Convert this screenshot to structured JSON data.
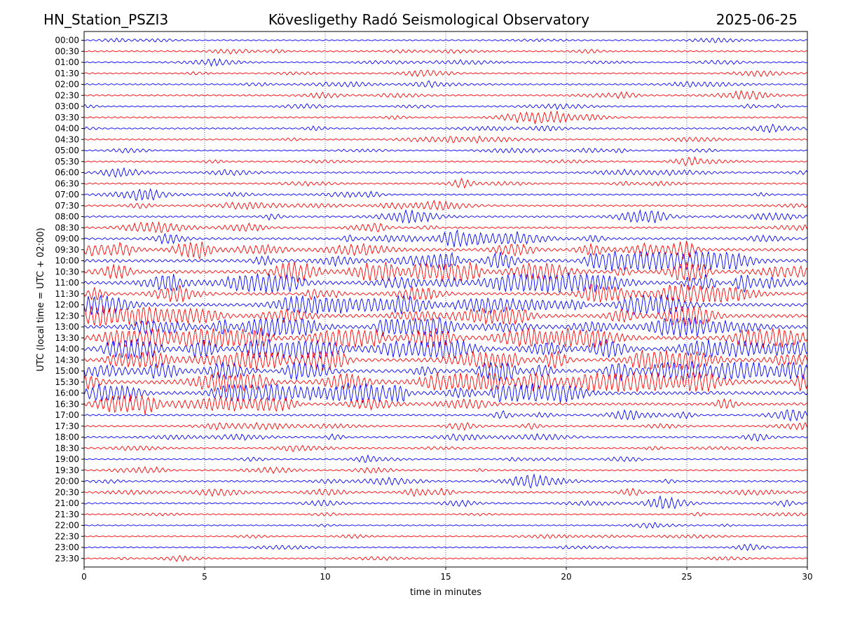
{
  "header": {
    "station": "HN_Station_PSZI3",
    "observatory": "Kövesligethy Radó Seismological Observatory",
    "date": "2025-06-25"
  },
  "chart_data": {
    "type": "line",
    "title": "Kövesligethy Radó Seismological Observatory",
    "xlabel": "time in minutes",
    "ylabel": "UTC (local time = UTC + 02:00)",
    "xlim": [
      0,
      30
    ],
    "xticks": [
      "0",
      "5",
      "10",
      "15",
      "20",
      "25",
      "30"
    ],
    "grid": "vertical dotted at each x tick",
    "row_colors": [
      "#0000ff",
      "#ff0000"
    ],
    "rows": [
      {
        "label": "00:00",
        "activity": 0.15
      },
      {
        "label": "00:30",
        "activity": 0.18
      },
      {
        "label": "01:00",
        "activity": 0.18
      },
      {
        "label": "01:30",
        "activity": 0.2
      },
      {
        "label": "02:00",
        "activity": 0.22
      },
      {
        "label": "02:30",
        "activity": 0.22
      },
      {
        "label": "03:00",
        "activity": 0.2
      },
      {
        "label": "03:30",
        "activity": 0.22
      },
      {
        "label": "04:00",
        "activity": 0.22
      },
      {
        "label": "04:30",
        "activity": 0.22
      },
      {
        "label": "05:00",
        "activity": 0.18
      },
      {
        "label": "05:30",
        "activity": 0.2
      },
      {
        "label": "06:00",
        "activity": 0.25
      },
      {
        "label": "06:30",
        "activity": 0.22
      },
      {
        "label": "07:00",
        "activity": 0.25
      },
      {
        "label": "07:30",
        "activity": 0.28
      },
      {
        "label": "08:00",
        "activity": 0.28
      },
      {
        "label": "08:30",
        "activity": 0.32
      },
      {
        "label": "09:00",
        "activity": 0.45
      },
      {
        "label": "09:30",
        "activity": 0.6
      },
      {
        "label": "10:00",
        "activity": 0.75
      },
      {
        "label": "10:30",
        "activity": 0.75
      },
      {
        "label": "11:00",
        "activity": 0.78
      },
      {
        "label": "11:30",
        "activity": 0.6
      },
      {
        "label": "12:00",
        "activity": 0.72
      },
      {
        "label": "12:30",
        "activity": 0.85
      },
      {
        "label": "13:00",
        "activity": 0.8
      },
      {
        "label": "13:30",
        "activity": 0.95
      },
      {
        "label": "14:00",
        "activity": 0.9
      },
      {
        "label": "14:30",
        "activity": 0.8
      },
      {
        "label": "15:00",
        "activity": 0.8
      },
      {
        "label": "15:30",
        "activity": 0.95
      },
      {
        "label": "16:00",
        "activity": 0.85
      },
      {
        "label": "16:30",
        "activity": 0.55
      },
      {
        "label": "17:00",
        "activity": 0.3
      },
      {
        "label": "17:30",
        "activity": 0.3
      },
      {
        "label": "18:00",
        "activity": 0.3
      },
      {
        "label": "18:30",
        "activity": 0.2
      },
      {
        "label": "19:00",
        "activity": 0.18
      },
      {
        "label": "19:30",
        "activity": 0.22
      },
      {
        "label": "20:00",
        "activity": 0.28
      },
      {
        "label": "20:30",
        "activity": 0.3
      },
      {
        "label": "21:00",
        "activity": 0.25
      },
      {
        "label": "21:30",
        "activity": 0.15
      },
      {
        "label": "22:00",
        "activity": 0.12
      },
      {
        "label": "22:30",
        "activity": 0.15
      },
      {
        "label": "23:00",
        "activity": 0.15
      },
      {
        "label": "23:30",
        "activity": 0.15
      }
    ]
  }
}
